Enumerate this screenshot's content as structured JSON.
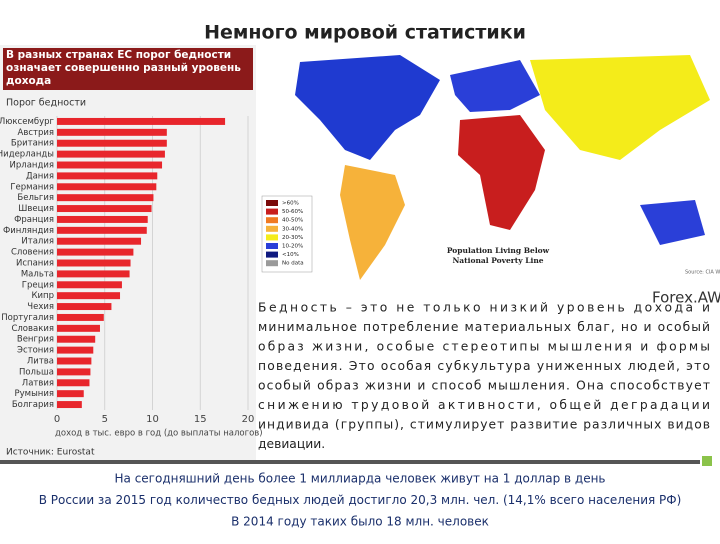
{
  "title": "Немного мировой статистики",
  "chart_data": {
    "type": "bar",
    "orientation": "horizontal",
    "title": "В разных странах ЕС порог бедности означает совершенно разный уровень дохода",
    "subtitle": "Порог бедности",
    "categories": [
      "Люксембург",
      "Австрия",
      "Британия",
      "Нидерланды",
      "Ирландия",
      "Дания",
      "Германия",
      "Бельгия",
      "Швеция",
      "Франция",
      "Финляндия",
      "Италия",
      "Словения",
      "Испания",
      "Мальта",
      "Греция",
      "Кипр",
      "Чехия",
      "Португалия",
      "Словакия",
      "Венгрия",
      "Эстония",
      "Литва",
      "Польша",
      "Латвия",
      "Румыния",
      "Болгария"
    ],
    "values": [
      17.6,
      11.5,
      11.5,
      11.3,
      11.0,
      10.5,
      10.4,
      10.1,
      9.9,
      9.5,
      9.4,
      8.8,
      8.0,
      7.7,
      7.6,
      6.8,
      6.6,
      5.7,
      4.9,
      4.5,
      4.0,
      3.8,
      3.6,
      3.5,
      3.4,
      2.8,
      2.6
    ],
    "color": "#e8262c",
    "xlim": [
      0,
      20
    ],
    "xticks": [
      0,
      5,
      10,
      15,
      20
    ],
    "grid": true,
    "xlabel": "доход в тыс. евро в год (до выплаты налогов)",
    "source": "Источник: Eurostat"
  },
  "map": {
    "legend": [
      {
        "label": ">60%",
        "color": "#7a0a0a"
      },
      {
        "label": "50-60%",
        "color": "#c81e1e"
      },
      {
        "label": "40-50%",
        "color": "#f07a22"
      },
      {
        "label": "30-40%",
        "color": "#f6b23a"
      },
      {
        "label": "20-30%",
        "color": "#f4ec1a"
      },
      {
        "label": "10-20%",
        "color": "#2a3fd8"
      },
      {
        "label": "<10%",
        "color": "#101a80"
      },
      {
        "label": "No data",
        "color": "#9a9a9a"
      }
    ],
    "caption": [
      "Population Living Below",
      "National Poverty Line"
    ],
    "watermark": "Forex.AW.c"
  },
  "body": [
    "Бедность – это не только низкий уровень дохода и",
    "минимальное потребление материальных благ, но и особый",
    "образ жизни, особые стереотипы мышления и формы",
    "поведения. Это особая субкультура униженных людей, это",
    "особый образ жизни и способ мышления. Она способствует",
    "снижению трудовой активности, общей деградации",
    "индивида (группы), стимулирует развитие различных видов",
    "девиации."
  ],
  "footer": [
    "На сегодняшний день более 1 миллиарда человек живут на 1 доллар в день",
    "В России за 2015 год количество бедных людей достигло 20,3 млн. чел. (14,1% всего населения РФ)",
    "В 2014 году таких было 18 млн. человек"
  ]
}
